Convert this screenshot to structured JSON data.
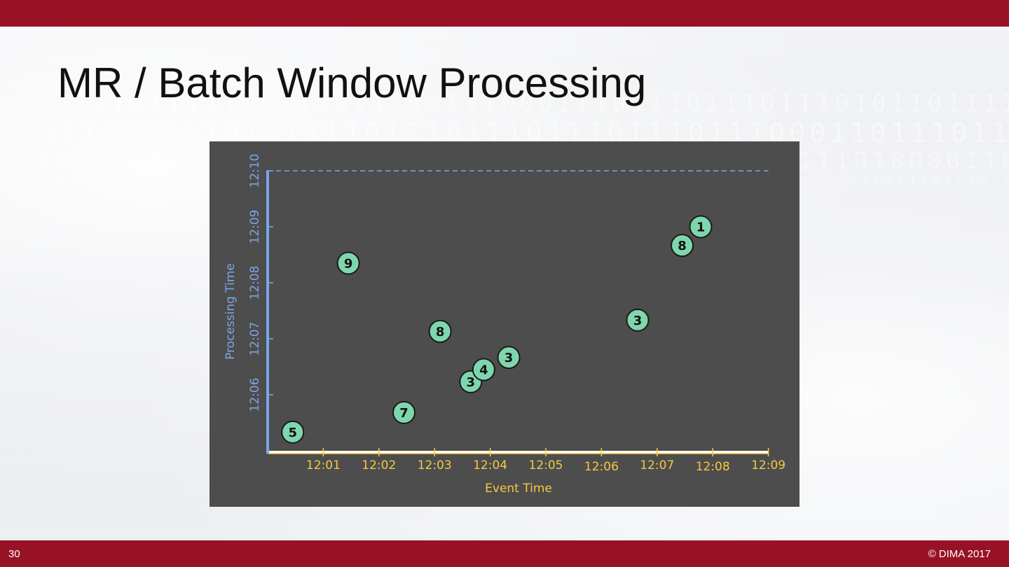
{
  "slide": {
    "title": "MR / Batch Window Processing",
    "page_number": "30",
    "copyright": "© DIMA 2017",
    "colors": {
      "bar": "#981225",
      "chart_bg": "#4d4d4d",
      "x_axis": "#f5c842",
      "y_axis": "#7aa6e8",
      "point": "#7fd6ad"
    }
  },
  "chart_data": {
    "type": "scatter",
    "title": "",
    "xlabel": "Event Time",
    "ylabel": "Processing Time",
    "x_ticks": [
      "12:01",
      "12:02",
      "12:03",
      "12:04",
      "12:05",
      "12:06",
      "12:07",
      "12:08",
      "12:09"
    ],
    "y_ticks": [
      "12:06",
      "12:07",
      "12:08",
      "12:09",
      "12:10"
    ],
    "xlim_minutes": [
      0,
      9
    ],
    "ylim_minutes": [
      5,
      10
    ],
    "reference_line": {
      "y": "12:10",
      "style": "dashed"
    },
    "points": [
      {
        "label": "5",
        "event_time": "12:00:27",
        "processing_time": "12:05:20"
      },
      {
        "label": "9",
        "event_time": "12:01:27",
        "processing_time": "12:08:21"
      },
      {
        "label": "7",
        "event_time": "12:02:27",
        "processing_time": "12:05:41"
      },
      {
        "label": "8",
        "event_time": "12:03:06",
        "processing_time": "12:07:08"
      },
      {
        "label": "3",
        "event_time": "12:03:39",
        "processing_time": "12:06:14"
      },
      {
        "label": "4",
        "event_time": "12:03:53",
        "processing_time": "12:06:27"
      },
      {
        "label": "3",
        "event_time": "12:04:20",
        "processing_time": "12:06:40"
      },
      {
        "label": "3",
        "event_time": "12:06:39",
        "processing_time": "12:07:20"
      },
      {
        "label": "8",
        "event_time": "12:07:27",
        "processing_time": "12:08:40"
      },
      {
        "label": "1",
        "event_time": "12:07:47",
        "processing_time": "12:09:00"
      }
    ]
  }
}
